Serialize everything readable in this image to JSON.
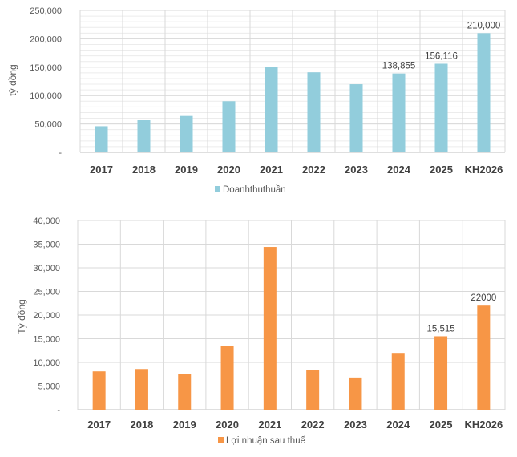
{
  "chart_data": [
    {
      "type": "bar",
      "categories": [
        "2017",
        "2018",
        "2019",
        "2020",
        "2021",
        "2022",
        "2023",
        "2024",
        "2025",
        "KH2026"
      ],
      "series": [
        {
          "name": "Doanhthuthuần",
          "color": "#92CDDC",
          "values": [
            46000,
            56500,
            64000,
            90000,
            150500,
            141000,
            120000,
            138855,
            156116,
            210000
          ]
        }
      ],
      "data_labels": {
        "7": "138,855",
        "8": "156,116",
        "9": "210,000"
      },
      "ylabel": "tỷ đồng",
      "ylim": [
        0,
        250000
      ],
      "yticks": [
        0,
        50000,
        100000,
        150000,
        200000,
        250000
      ],
      "ytick_labels": [
        "-",
        "50,000",
        "100,000",
        "150,000",
        "200,000",
        "250,000"
      ],
      "grid": true,
      "legend": "bottom"
    },
    {
      "type": "bar",
      "categories": [
        "2017",
        "2018",
        "2019",
        "2020",
        "2021",
        "2022",
        "2023",
        "2024",
        "2025",
        "KH2026"
      ],
      "series": [
        {
          "name": "Lợi nhuận sau thuế",
          "color": "#F79646",
          "values": [
            8100,
            8600,
            7500,
            13500,
            34400,
            8400,
            6800,
            12000,
            15515,
            22000
          ]
        }
      ],
      "data_labels": {
        "8": "15,515",
        "9": "22000"
      },
      "ylabel": "Tỷ đồng",
      "ylim": [
        0,
        40000
      ],
      "yticks": [
        0,
        5000,
        10000,
        15000,
        20000,
        25000,
        30000,
        35000,
        40000
      ],
      "ytick_labels": [
        "-",
        "5,000",
        "10,000",
        "15,000",
        "20,000",
        "25,000",
        "30,000",
        "35,000",
        "40,000"
      ],
      "grid": true,
      "legend": "bottom"
    }
  ]
}
